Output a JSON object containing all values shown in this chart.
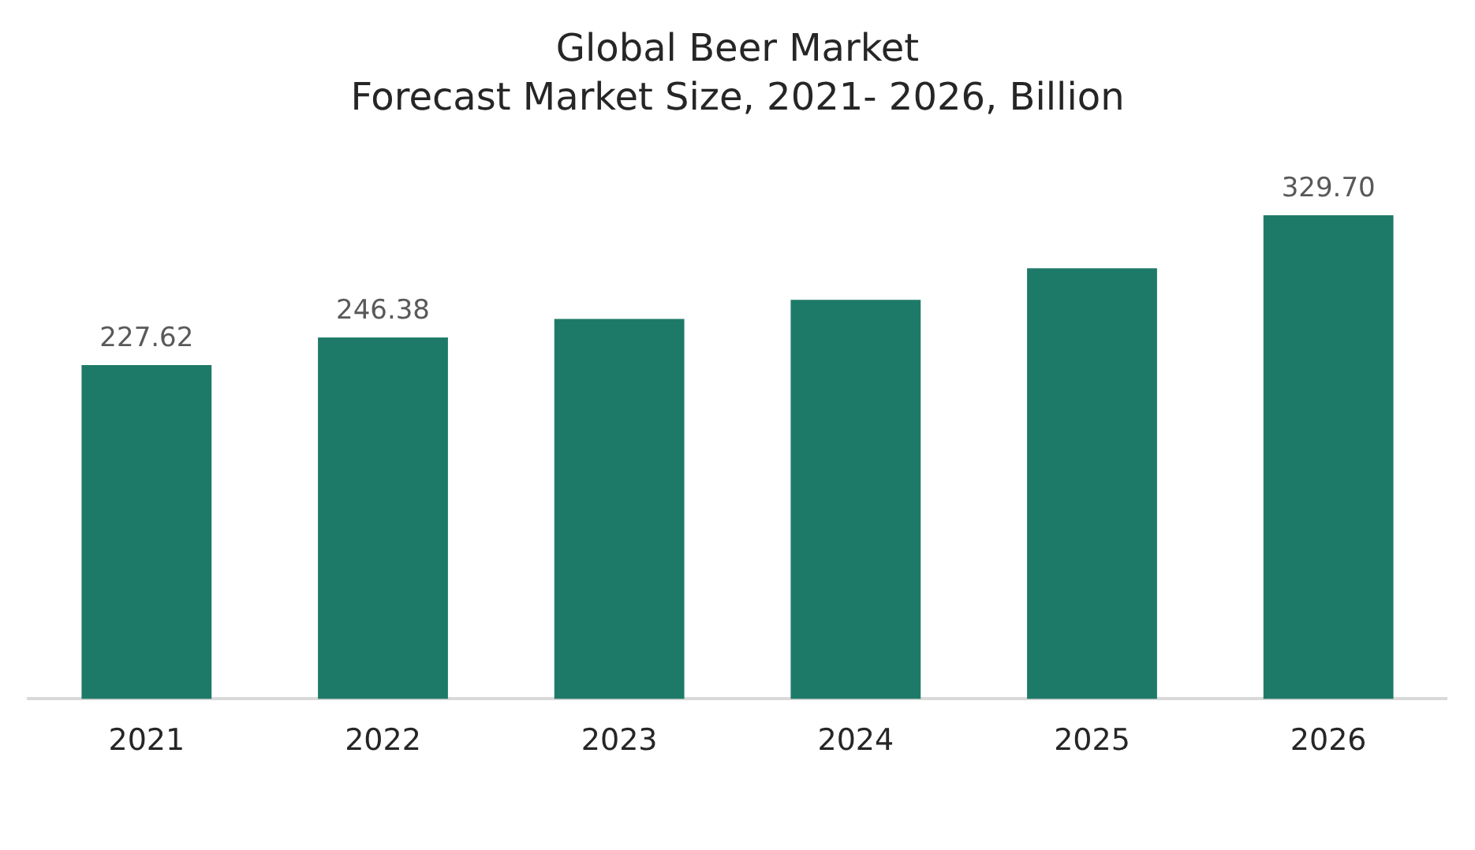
{
  "chart_data": {
    "type": "bar",
    "title": "Global Beer Market",
    "subtitle": "Forecast Market Size, 2021- 2026, Billion",
    "categories": [
      "2021",
      "2022",
      "2023",
      "2024",
      "2025",
      "2026"
    ],
    "values": [
      227.62,
      246.38,
      259,
      272,
      293.5,
      329.7
    ],
    "value_labels": [
      "227.62",
      "246.38",
      null,
      null,
      null,
      "329.70"
    ],
    "color": "#1e7a68",
    "grid": false,
    "legend": false
  }
}
